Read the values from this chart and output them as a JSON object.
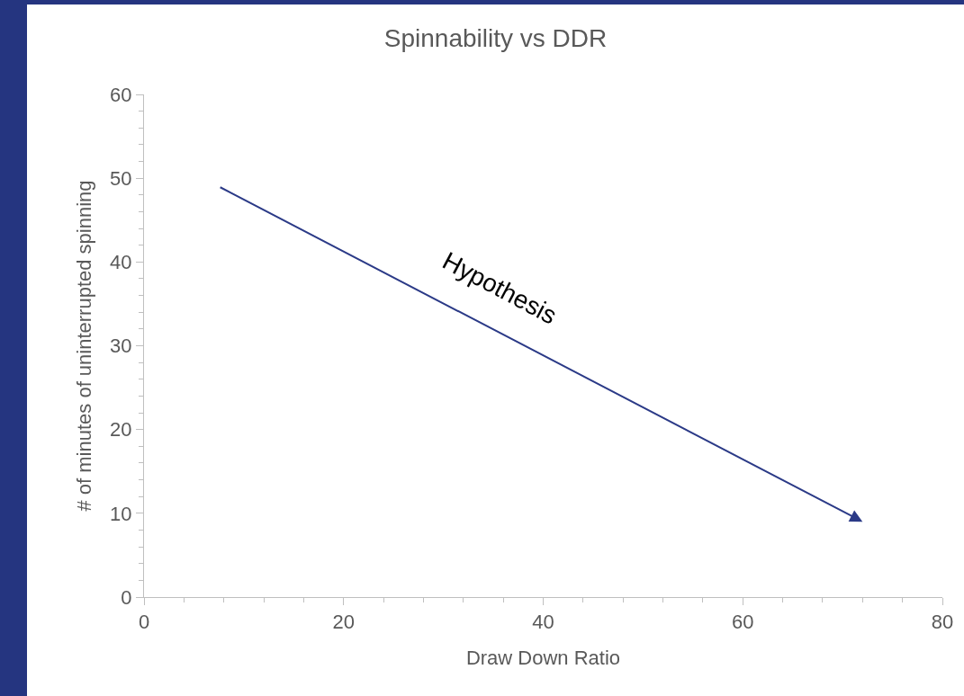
{
  "chart_data": {
    "type": "line",
    "title": "Spinnability vs DDR",
    "xlabel": "Draw Down Ratio",
    "ylabel": "# of minutes of uninterrupted spinning",
    "xlim": [
      0,
      80
    ],
    "xticks": [
      0,
      20,
      40,
      60,
      80
    ],
    "ylim": [
      0,
      60
    ],
    "yticks": [
      0,
      10,
      20,
      30,
      40,
      50,
      60
    ],
    "grid": false,
    "annotations": [
      "Hypothesis"
    ]
  }
}
